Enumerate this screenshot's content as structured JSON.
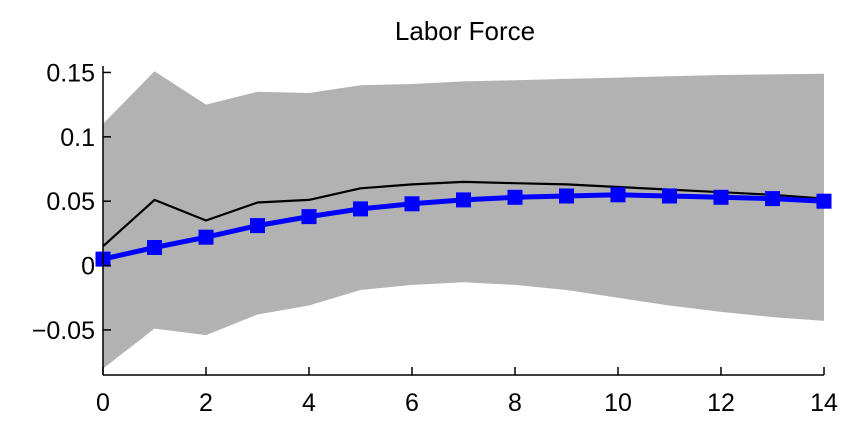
{
  "chart_data": {
    "type": "line",
    "title": "Labor Force",
    "xlabel": "",
    "ylabel": "",
    "xlim": [
      0,
      14
    ],
    "ylim": [
      -0.085,
      0.155
    ],
    "grid": false,
    "x_ticks": [
      0,
      2,
      4,
      6,
      8,
      10,
      12,
      14
    ],
    "x_tick_labels": [
      "0",
      "2",
      "4",
      "6",
      "8",
      "10",
      "12",
      "14"
    ],
    "y_ticks": [
      -0.05,
      0,
      0.05,
      0.1,
      0.15
    ],
    "y_tick_labels": [
      "−0.05",
      "0",
      "0.05",
      "0.1",
      "0.15"
    ],
    "x": [
      0,
      1,
      2,
      3,
      4,
      5,
      6,
      7,
      8,
      9,
      10,
      11,
      12,
      13,
      14
    ],
    "band": {
      "upper": [
        0.11,
        0.151,
        0.125,
        0.135,
        0.134,
        0.14,
        0.141,
        0.143,
        0.144,
        0.145,
        0.146,
        0.147,
        0.148,
        0.1485,
        0.149
      ],
      "lower": [
        -0.08,
        -0.049,
        -0.054,
        -0.038,
        -0.031,
        -0.019,
        -0.015,
        -0.013,
        -0.015,
        -0.019,
        -0.025,
        -0.031,
        -0.036,
        -0.04,
        -0.043
      ],
      "color": "#b2b2b2"
    },
    "series": [
      {
        "values": [
          0.015,
          0.051,
          0.035,
          0.049,
          0.051,
          0.06,
          0.063,
          0.065,
          0.064,
          0.063,
          0.061,
          0.059,
          0.057,
          0.055,
          0.052
        ],
        "color": "#000000",
        "marker": "none"
      },
      {
        "values": [
          0.005,
          0.014,
          0.022,
          0.031,
          0.038,
          0.044,
          0.048,
          0.051,
          0.053,
          0.054,
          0.055,
          0.054,
          0.053,
          0.052,
          0.05
        ],
        "color": "#0000ff",
        "marker": "square"
      }
    ]
  }
}
